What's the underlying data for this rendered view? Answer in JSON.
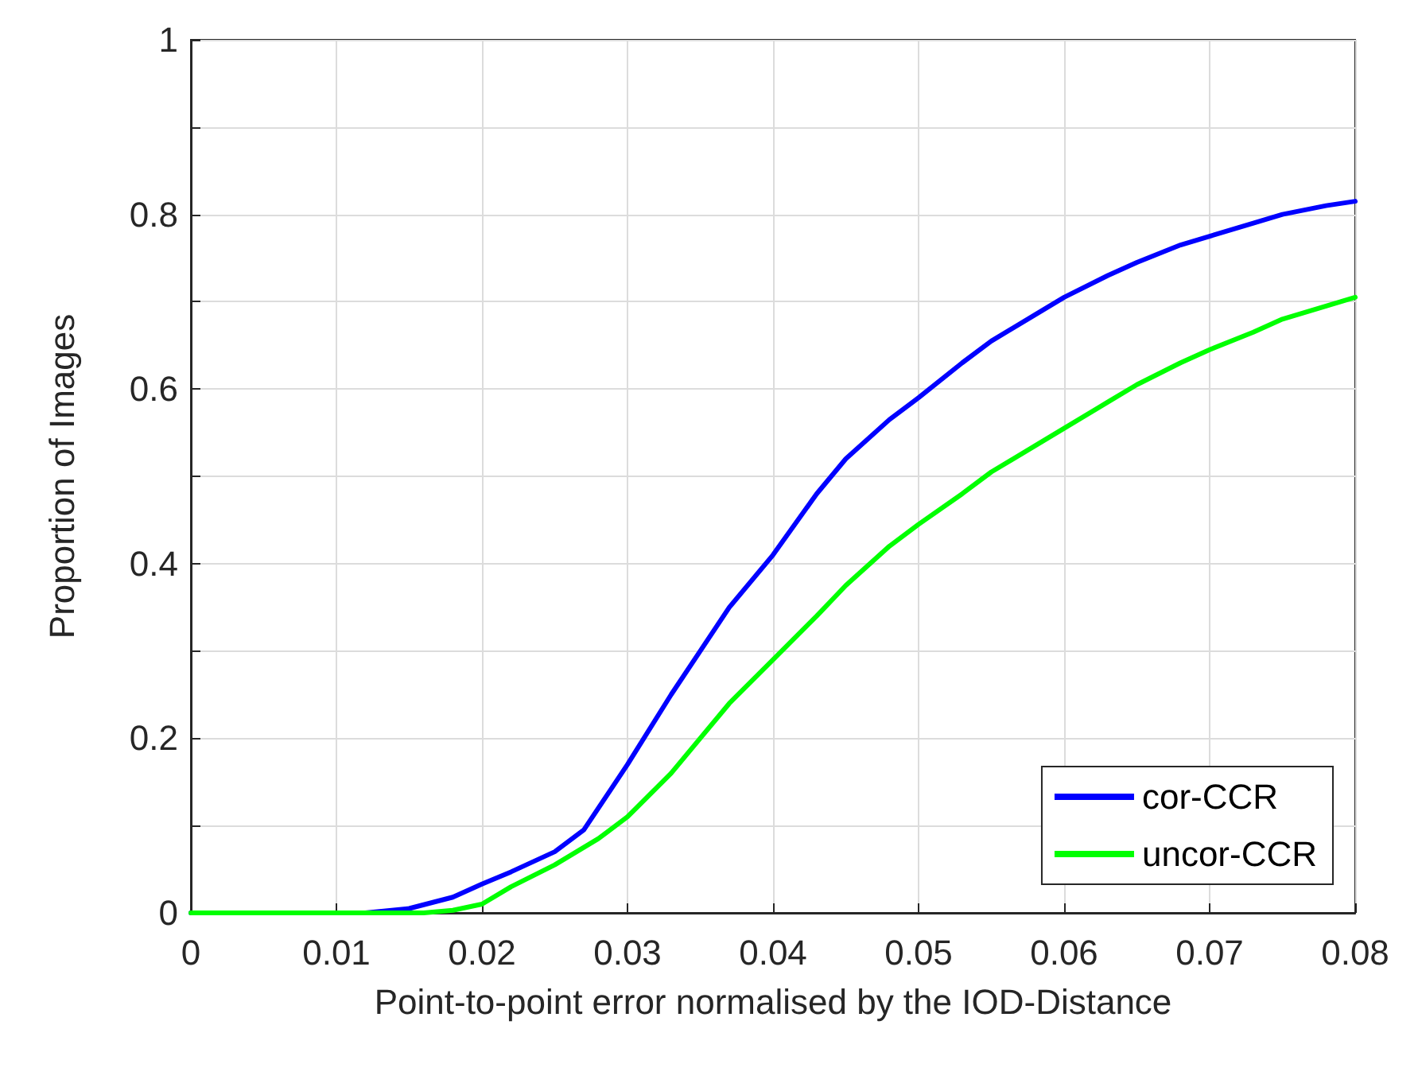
{
  "chart_data": {
    "type": "line",
    "xlabel": "Point-to-point error normalised by the IOD-Distance",
    "ylabel": "Proportion of Images",
    "xlim": [
      0,
      0.08
    ],
    "xticks": [
      0,
      0.01,
      0.02,
      0.03,
      0.04,
      0.05,
      0.06,
      0.07,
      0.08
    ],
    "ylim": [
      0,
      1
    ],
    "yticks": [
      0,
      {
        "value": 0.1,
        "label": null
      },
      0.2,
      {
        "value": 0.3,
        "label": null
      },
      0.4,
      {
        "value": 0.5,
        "label": null
      },
      0.6,
      {
        "value": 0.7,
        "label": null
      },
      0.8,
      {
        "value": 0.9,
        "label": null
      },
      1
    ],
    "grid": true,
    "legend": "bottom right",
    "marker": "none",
    "line_style": "solid",
    "series": [
      {
        "name": "cor-CCR",
        "color": "#0000ff",
        "x": [
          0,
          0.012,
          0.015,
          0.018,
          0.02,
          0.022,
          0.025,
          0.027,
          0.03,
          0.033,
          0.035,
          0.037,
          0.04,
          0.043,
          0.045,
          0.048,
          0.05,
          0.053,
          0.055,
          0.058,
          0.06,
          0.063,
          0.065,
          0.068,
          0.07,
          0.073,
          0.075,
          0.078,
          0.08
        ],
        "values": [
          0,
          0,
          0.005,
          0.018,
          0.033,
          0.047,
          0.07,
          0.095,
          0.17,
          0.25,
          0.3,
          0.35,
          0.41,
          0.48,
          0.52,
          0.565,
          0.59,
          0.63,
          0.655,
          0.685,
          0.705,
          0.73,
          0.745,
          0.765,
          0.775,
          0.79,
          0.8,
          0.81,
          0.815
        ]
      },
      {
        "name": "uncor-CCR",
        "color": "#00ff00",
        "x": [
          0,
          0.016,
          0.018,
          0.02,
          0.022,
          0.025,
          0.028,
          0.03,
          0.033,
          0.035,
          0.037,
          0.04,
          0.043,
          0.045,
          0.048,
          0.05,
          0.053,
          0.055,
          0.058,
          0.06,
          0.063,
          0.065,
          0.068,
          0.07,
          0.073,
          0.075,
          0.078,
          0.08
        ],
        "values": [
          0,
          0,
          0.003,
          0.01,
          0.03,
          0.055,
          0.085,
          0.11,
          0.16,
          0.2,
          0.24,
          0.29,
          0.34,
          0.375,
          0.42,
          0.445,
          0.48,
          0.505,
          0.535,
          0.555,
          0.585,
          0.605,
          0.63,
          0.645,
          0.665,
          0.68,
          0.695,
          0.705
        ]
      }
    ]
  }
}
